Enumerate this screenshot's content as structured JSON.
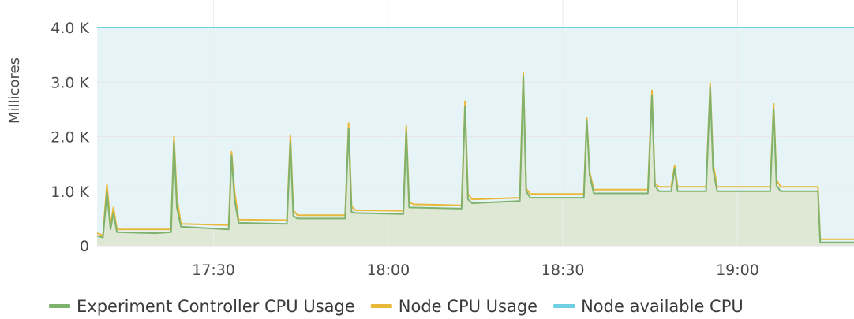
{
  "chart_data": {
    "type": "line",
    "ylabel": "Millicores",
    "yticks": [
      {
        "value": 0,
        "label": "0"
      },
      {
        "value": 1000,
        "label": "1.0 K"
      },
      {
        "value": 2000,
        "label": "2.0 K"
      },
      {
        "value": 3000,
        "label": "3.0 K"
      },
      {
        "value": 4000,
        "label": "4.0 K"
      }
    ],
    "ylim": [
      0,
      4000
    ],
    "xlim": [
      "17:10",
      "19:20"
    ],
    "xticks": [
      "17:30",
      "18:00",
      "18:30",
      "19:00"
    ],
    "grid": true,
    "legend_position": "bottom",
    "series": [
      {
        "name": "Experiment Controller CPU Usage",
        "color": "#7eb26d",
        "fill": "#dfe8d5",
        "points": [
          [
            "17:10",
            180
          ],
          [
            "17:11",
            150
          ],
          [
            "17:11.7",
            980
          ],
          [
            "17:12.3",
            300
          ],
          [
            "17:12.8",
            600
          ],
          [
            "17:13.4",
            250
          ],
          [
            "17:20",
            230
          ],
          [
            "17:22.7",
            250
          ],
          [
            "17:23.2",
            1900
          ],
          [
            "17:23.7",
            700
          ],
          [
            "17:24.4",
            350
          ],
          [
            "17:32.6",
            300
          ],
          [
            "17:33.1",
            1650
          ],
          [
            "17:33.6",
            850
          ],
          [
            "17:34.3",
            420
          ],
          [
            "17:42.6",
            400
          ],
          [
            "17:43.2",
            1900
          ],
          [
            "17:43.7",
            550
          ],
          [
            "17:44.4",
            500
          ],
          [
            "17:52.6",
            500
          ],
          [
            "17:53.2",
            2150
          ],
          [
            "17:53.7",
            620
          ],
          [
            "17:54.4",
            600
          ],
          [
            "18:02.6",
            580
          ],
          [
            "18:03.1",
            2100
          ],
          [
            "18:03.6",
            700
          ],
          [
            "18:04.3",
            700
          ],
          [
            "18:12.6",
            680
          ],
          [
            "18:13.2",
            2550
          ],
          [
            "18:13.7",
            850
          ],
          [
            "18:14.4",
            780
          ],
          [
            "18:22.6",
            820
          ],
          [
            "18:23.2",
            3100
          ],
          [
            "18:23.7",
            1000
          ],
          [
            "18:24.4",
            880
          ],
          [
            "18:33.6",
            880
          ],
          [
            "18:34.1",
            2300
          ],
          [
            "18:34.6",
            1300
          ],
          [
            "18:35.3",
            960
          ],
          [
            "18:44.6",
            960
          ],
          [
            "18:45.3",
            2750
          ],
          [
            "18:45.8",
            1100
          ],
          [
            "18:46.5",
            1000
          ],
          [
            "18:48.6",
            1000
          ],
          [
            "18:49.2",
            1420
          ],
          [
            "18:49.7",
            1000
          ],
          [
            "18:54.6",
            1000
          ],
          [
            "18:55.3",
            2900
          ],
          [
            "18:55.8",
            1400
          ],
          [
            "18:56.5",
            1000
          ],
          [
            "19:05.6",
            1000
          ],
          [
            "19:06.2",
            2500
          ],
          [
            "19:06.7",
            1100
          ],
          [
            "19:07.4",
            1000
          ],
          [
            "19:13.4",
            1000
          ],
          [
            "19:13.8",
            1000
          ],
          [
            "19:14.2",
            60
          ],
          [
            "19:20",
            60
          ]
        ]
      },
      {
        "name": "Node CPU Usage",
        "color": "#eab839",
        "fill": "none",
        "points": [
          [
            "17:10",
            230
          ],
          [
            "17:11",
            190
          ],
          [
            "17:11.7",
            1120
          ],
          [
            "17:12.3",
            380
          ],
          [
            "17:12.8",
            700
          ],
          [
            "17:13.4",
            300
          ],
          [
            "17:20",
            300
          ],
          [
            "17:22.7",
            300
          ],
          [
            "17:23.2",
            2000
          ],
          [
            "17:23.7",
            880
          ],
          [
            "17:24.4",
            400
          ],
          [
            "17:32.6",
            380
          ],
          [
            "17:33.1",
            1720
          ],
          [
            "17:33.6",
            1000
          ],
          [
            "17:34.3",
            480
          ],
          [
            "17:42.6",
            470
          ],
          [
            "17:43.2",
            2030
          ],
          [
            "17:43.7",
            650
          ],
          [
            "17:44.4",
            560
          ],
          [
            "17:52.6",
            560
          ],
          [
            "17:53.2",
            2250
          ],
          [
            "17:53.7",
            720
          ],
          [
            "17:54.4",
            650
          ],
          [
            "18:02.6",
            640
          ],
          [
            "18:03.1",
            2200
          ],
          [
            "18:03.6",
            800
          ],
          [
            "18:04.3",
            760
          ],
          [
            "18:12.6",
            740
          ],
          [
            "18:13.2",
            2650
          ],
          [
            "18:13.7",
            950
          ],
          [
            "18:14.4",
            850
          ],
          [
            "18:22.6",
            880
          ],
          [
            "18:23.2",
            3180
          ],
          [
            "18:23.7",
            1050
          ],
          [
            "18:24.4",
            950
          ],
          [
            "18:33.6",
            950
          ],
          [
            "18:34.1",
            2350
          ],
          [
            "18:34.6",
            1350
          ],
          [
            "18:35.3",
            1030
          ],
          [
            "18:44.6",
            1030
          ],
          [
            "18:45.3",
            2850
          ],
          [
            "18:45.8",
            1150
          ],
          [
            "18:46.5",
            1080
          ],
          [
            "18:48.6",
            1080
          ],
          [
            "18:49.2",
            1470
          ],
          [
            "18:49.7",
            1080
          ],
          [
            "18:54.6",
            1080
          ],
          [
            "18:55.3",
            2980
          ],
          [
            "18:55.8",
            1500
          ],
          [
            "18:56.5",
            1080
          ],
          [
            "19:05.6",
            1080
          ],
          [
            "19:06.2",
            2600
          ],
          [
            "19:06.7",
            1200
          ],
          [
            "19:07.4",
            1080
          ],
          [
            "19:13.4",
            1080
          ],
          [
            "19:13.8",
            1080
          ],
          [
            "19:14.2",
            120
          ],
          [
            "19:20",
            120
          ]
        ]
      },
      {
        "name": "Node available CPU",
        "color": "#6ed0e0",
        "fill": "#e6f4f8",
        "points": [
          [
            "17:10",
            4000
          ],
          [
            "19:20",
            4000
          ]
        ]
      }
    ]
  }
}
